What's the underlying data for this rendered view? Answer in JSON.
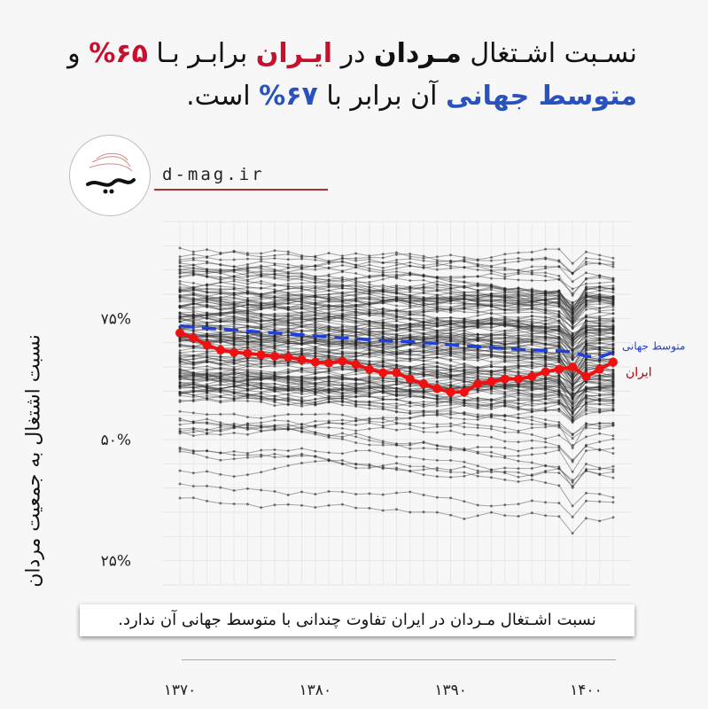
{
  "title": {
    "line1_pre": "نسـبت اشـتغال ",
    "line1_bold": "مـردان",
    "line1_mid": " در ",
    "line1_red": "ایـران",
    "line1_mid2": " برابـر بـا ",
    "line1_val": "۶۵%",
    "line1_end": " و",
    "line2_blue": "متوسط جهانی",
    "line2_mid": " آن برابر با ",
    "line2_val": "۶۷%",
    "line2_end": " است."
  },
  "brand": {
    "site": "d-mag.ir",
    "logo_icon": "dideh-logo-icon"
  },
  "note": "نسبت اشـتغال مـردان در ایران تفاوت چندانی با متوسط جهانی آن ندارد.",
  "chart_data": {
    "type": "line",
    "ylabel": "نسبت اشتغال به جمعیت مردان",
    "ylim": [
      20,
      95
    ],
    "y_ticks": [
      25,
      50,
      75
    ],
    "y_tick_labels": [
      "۲۵%",
      "۵۰%",
      "۷۵%"
    ],
    "x_ticks": [
      1370,
      1380,
      1390,
      1400
    ],
    "x_tick_labels": [
      "۱۳۷۰",
      "۱۳۸۰",
      "۱۳۹۰",
      "۱۴۰۰"
    ],
    "x": [
      1370,
      1371,
      1372,
      1373,
      1374,
      1375,
      1376,
      1377,
      1378,
      1379,
      1380,
      1381,
      1382,
      1383,
      1384,
      1385,
      1386,
      1387,
      1388,
      1389,
      1390,
      1391,
      1392,
      1393,
      1394,
      1395,
      1396,
      1397,
      1398,
      1399,
      1400,
      1401,
      1402
    ],
    "series": [
      {
        "name": "ایران",
        "color": "#ee1111",
        "values": [
          72.0,
          71.0,
          69.5,
          68.5,
          68.0,
          67.8,
          67.5,
          67.2,
          67.0,
          66.5,
          66.0,
          65.8,
          66.2,
          65.5,
          64.5,
          63.8,
          63.8,
          62.5,
          61.5,
          60.5,
          59.8,
          59.8,
          61.5,
          62.0,
          62.5,
          62.5,
          63.0,
          64.0,
          64.5,
          65.0,
          63.0,
          64.5,
          66.0
        ]
      },
      {
        "name": "متوسط جهانی",
        "color": "#1f3fd8",
        "values": [
          73.5,
          73.2,
          73.0,
          72.8,
          72.6,
          72.4,
          72.2,
          72.0,
          71.8,
          71.6,
          71.4,
          71.2,
          71.0,
          70.8,
          70.6,
          70.4,
          70.3,
          70.2,
          70.0,
          69.8,
          69.6,
          69.4,
          69.2,
          69.0,
          68.8,
          68.6,
          68.5,
          68.4,
          68.3,
          68.1,
          67.2,
          67.0,
          68.0
        ]
      }
    ],
    "background_series_color": "#3a3a3a",
    "grid": true
  }
}
